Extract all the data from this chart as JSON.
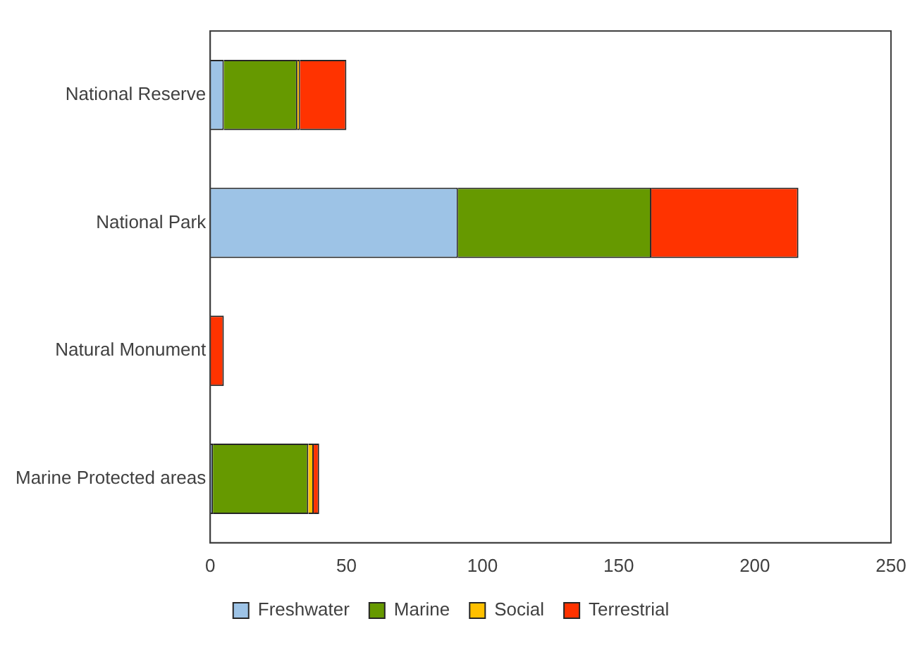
{
  "chart_data": {
    "type": "bar",
    "orientation": "horizontal",
    "stacked": true,
    "categories": [
      "National Reserve",
      "National Park",
      "Natural Monument",
      "Marine Protected areas"
    ],
    "series": [
      {
        "name": "Freshwater",
        "color": "#9dc3e6",
        "values": [
          5,
          91,
          0,
          1
        ]
      },
      {
        "name": "Marine",
        "color": "#669900",
        "values": [
          27,
          71,
          0,
          35
        ]
      },
      {
        "name": "Social",
        "color": "#ffc000",
        "values": [
          1,
          0,
          0,
          2
        ]
      },
      {
        "name": "Terrestrial",
        "color": "#ff3300",
        "values": [
          17,
          54,
          5,
          2
        ]
      }
    ],
    "xlim": [
      0,
      250
    ],
    "xticks": [
      0,
      50,
      100,
      150,
      200,
      250
    ],
    "grid": false,
    "legend": "bottom"
  }
}
